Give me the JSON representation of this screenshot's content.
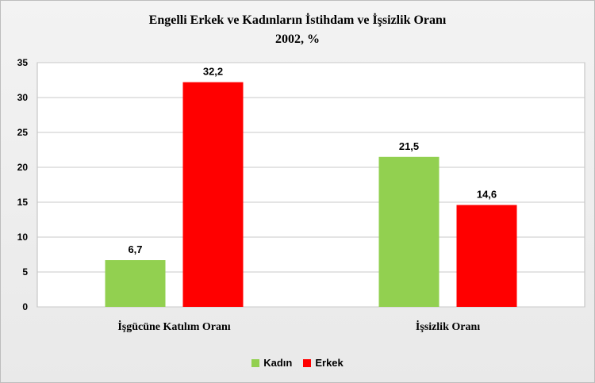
{
  "chart_data": {
    "type": "bar",
    "title": "Engelli Erkek ve Kadınların İstihdam ve İşsizlik Oranı",
    "subtitle": "2002, %",
    "categories": [
      "İşgücüne Katılım Oranı",
      "İşsizlik Oranı"
    ],
    "series": [
      {
        "name": "Kadın",
        "color": "#92d050",
        "values": [
          6.7,
          21.5
        ],
        "labels": [
          "6,7",
          "21,5"
        ]
      },
      {
        "name": "Erkek",
        "color": "#ff0000",
        "values": [
          32.2,
          14.6
        ],
        "labels": [
          "32,2",
          "14,6"
        ]
      }
    ],
    "yticks": [
      "0",
      "5",
      "10",
      "15",
      "20",
      "25",
      "30",
      "35"
    ],
    "ylim": [
      0,
      35
    ],
    "grid": true,
    "legend_position": "bottom"
  }
}
